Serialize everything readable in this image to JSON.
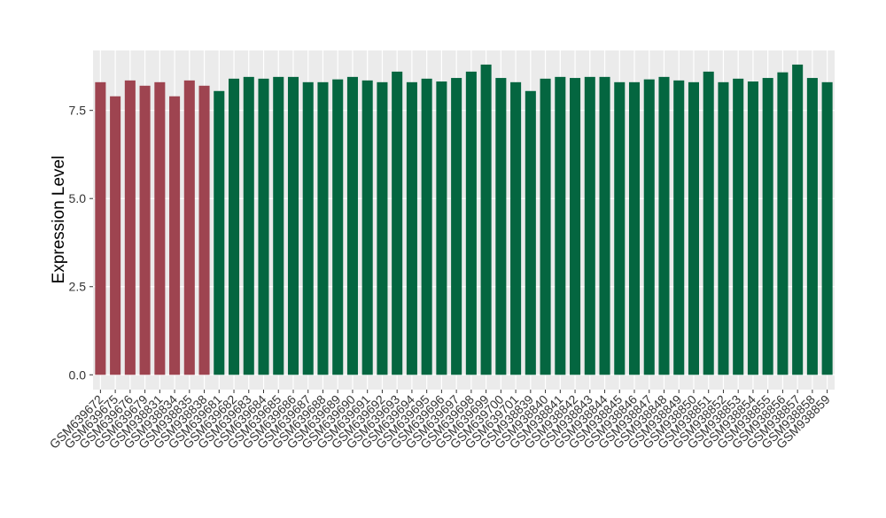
{
  "chart_data": {
    "type": "bar",
    "y_label": "Expression Level",
    "categories": [
      "GSM639672",
      "GSM639675",
      "GSM639676",
      "GSM639679",
      "GSM938831",
      "GSM938834",
      "GSM938835",
      "GSM938838",
      "GSM639681",
      "GSM639682",
      "GSM639683",
      "GSM639684",
      "GSM639685",
      "GSM639686",
      "GSM639687",
      "GSM639688",
      "GSM639689",
      "GSM639690",
      "GSM639691",
      "GSM639692",
      "GSM639693",
      "GSM639694",
      "GSM639695",
      "GSM639696",
      "GSM639697",
      "GSM639698",
      "GSM639699",
      "GSM639700",
      "GSM639701",
      "GSM938839",
      "GSM938840",
      "GSM938841",
      "GSM938842",
      "GSM938843",
      "GSM938844",
      "GSM938845",
      "GSM938846",
      "GSM938847",
      "GSM938848",
      "GSM938849",
      "GSM938850",
      "GSM938851",
      "GSM938852",
      "GSM938853",
      "GSM938854",
      "GSM938855",
      "GSM938856",
      "GSM938857",
      "GSM938858",
      "GSM938859"
    ],
    "values": [
      8.3,
      7.9,
      8.35,
      8.2,
      8.3,
      7.9,
      8.35,
      8.2,
      8.05,
      8.4,
      8.45,
      8.4,
      8.45,
      8.45,
      8.3,
      8.3,
      8.38,
      8.45,
      8.35,
      8.3,
      8.6,
      8.3,
      8.4,
      8.32,
      8.42,
      8.6,
      8.8,
      8.42,
      8.3,
      8.05,
      8.4,
      8.45,
      8.42,
      8.45,
      8.45,
      8.3,
      8.3,
      8.38,
      8.45,
      8.35,
      8.3,
      8.6,
      8.3,
      8.4,
      8.32,
      8.42,
      8.58,
      8.8,
      8.42,
      8.3
    ],
    "colors": [
      "#9e4450",
      "#9e4450",
      "#9e4450",
      "#9e4450",
      "#9e4450",
      "#9e4450",
      "#9e4450",
      "#9e4450",
      "#046640",
      "#046640",
      "#046640",
      "#046640",
      "#046640",
      "#046640",
      "#046640",
      "#046640",
      "#046640",
      "#046640",
      "#046640",
      "#046640",
      "#046640",
      "#046640",
      "#046640",
      "#046640",
      "#046640",
      "#046640",
      "#046640",
      "#046640",
      "#046640",
      "#046640",
      "#046640",
      "#046640",
      "#046640",
      "#046640",
      "#046640",
      "#046640",
      "#046640",
      "#046640",
      "#046640",
      "#046640",
      "#046640",
      "#046640",
      "#046640",
      "#046640",
      "#046640",
      "#046640",
      "#046640",
      "#046640",
      "#046640",
      "#046640"
    ],
    "ylim": [
      -0.42,
      9.2
    ],
    "yticks": [
      {
        "value": 0,
        "label": "0.0"
      },
      {
        "value": 2.5,
        "label": "2.5"
      },
      {
        "value": 5,
        "label": "5.0"
      },
      {
        "value": 7.5,
        "label": "7.5"
      }
    ],
    "grid": true
  }
}
